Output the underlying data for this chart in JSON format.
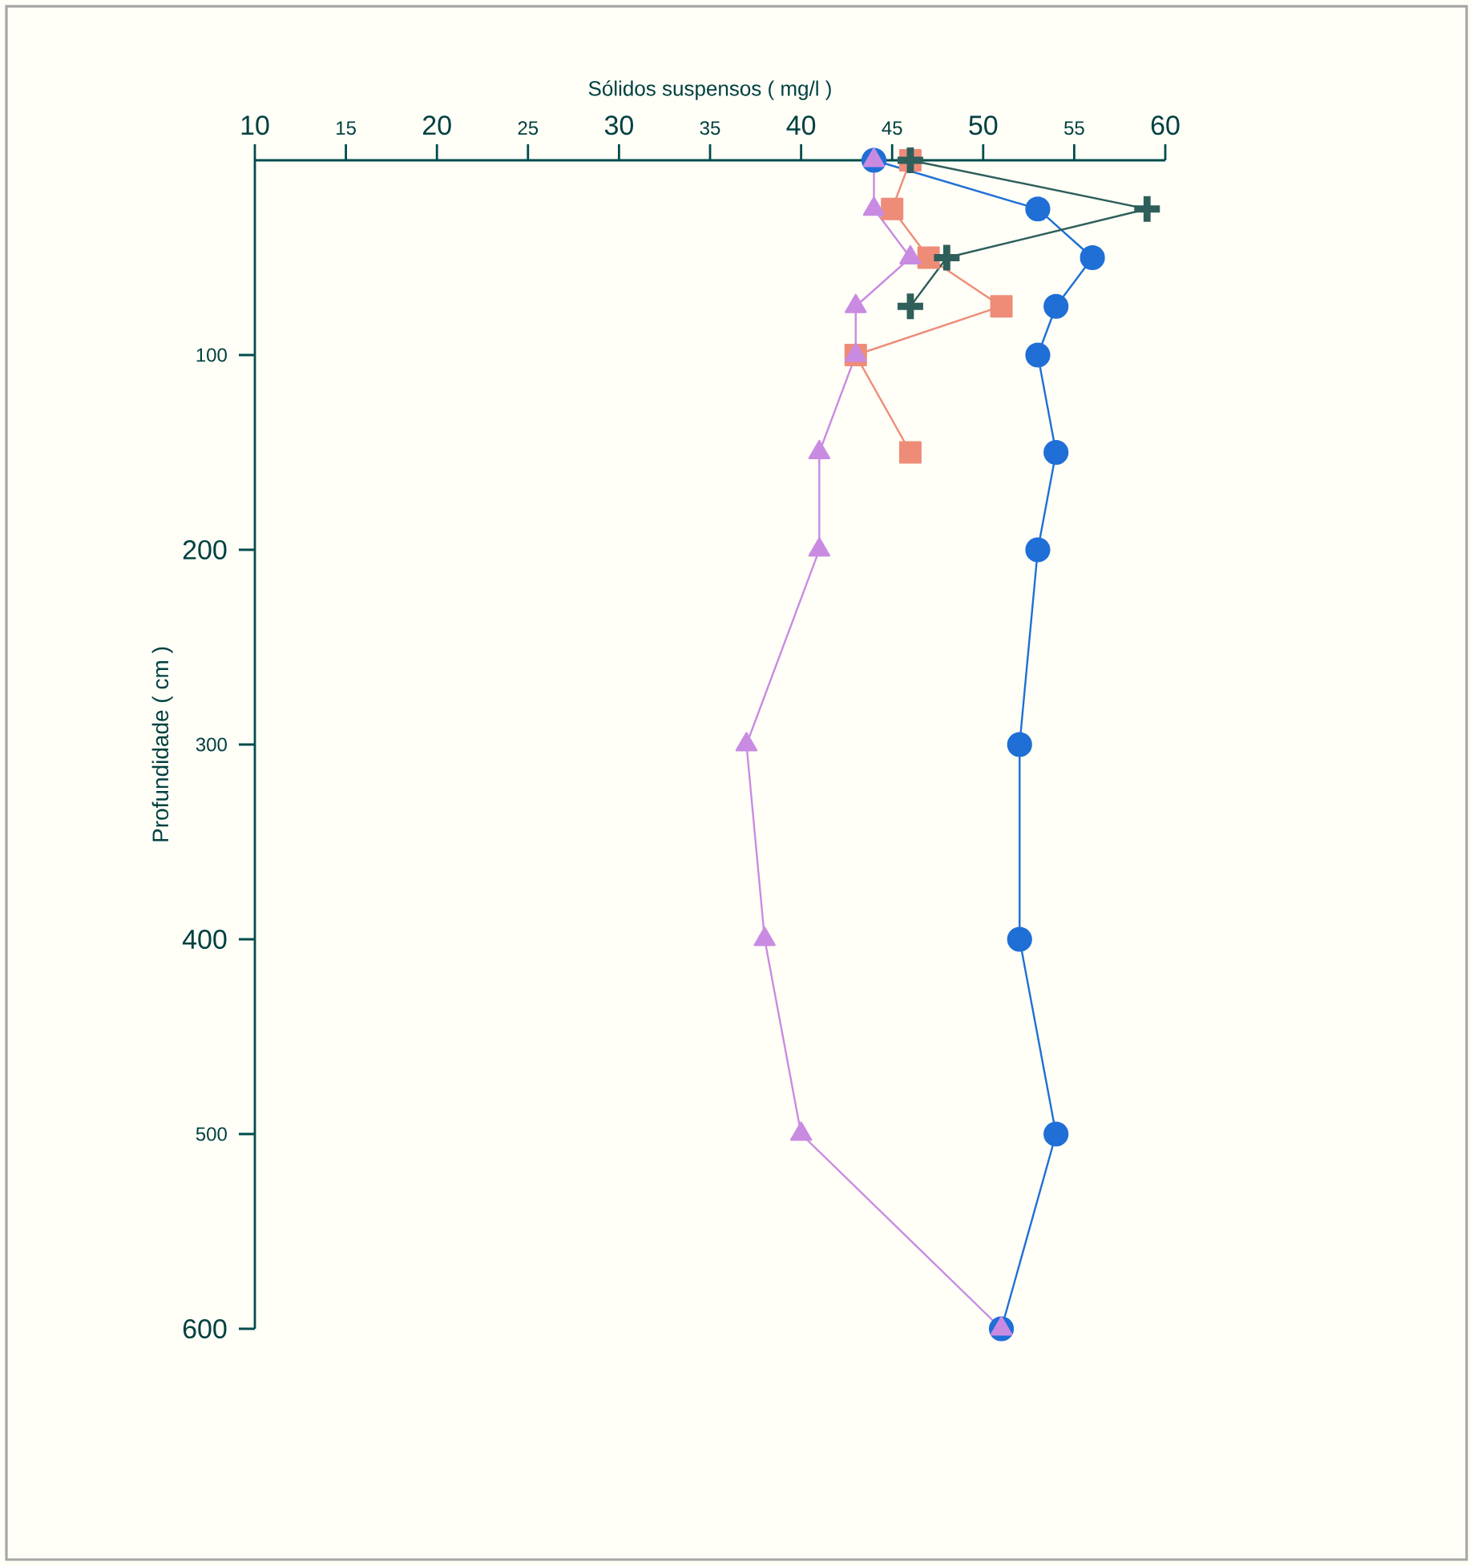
{
  "chart_data": {
    "type": "line",
    "xlabel": "Sólidos suspensos  ( mg/l )",
    "ylabel": "Profundidade ( cm )",
    "xlim": [
      10,
      60
    ],
    "xticks": [
      10,
      15,
      20,
      25,
      30,
      35,
      40,
      45,
      50,
      55,
      60
    ],
    "ylim": [
      600,
      0
    ],
    "yticks": [
      100,
      200,
      300,
      400,
      500,
      600
    ],
    "grid": false,
    "series": [
      {
        "color": "#1f6fd6",
        "marker": "circle",
        "x": [
          44,
          53,
          56,
          54,
          53,
          54,
          53,
          52,
          52,
          54,
          51
        ],
        "values": [
          0,
          25,
          50,
          75,
          100,
          150,
          200,
          300,
          400,
          500,
          600
        ]
      },
      {
        "color": "#c98be2",
        "marker": "triangle",
        "x": [
          44,
          44,
          46,
          43,
          43,
          41,
          41,
          37,
          38,
          40,
          51
        ],
        "values": [
          0,
          25,
          50,
          75,
          100,
          150,
          200,
          300,
          400,
          500,
          600
        ]
      },
      {
        "color": "#ee8c78",
        "marker": "square",
        "x": [
          46,
          45,
          47,
          51,
          43,
          46
        ],
        "values": [
          0,
          25,
          50,
          75,
          100,
          150
        ]
      },
      {
        "color": "#2f5f5a",
        "marker": "cross",
        "x": [
          46,
          59,
          48,
          46
        ],
        "values": [
          0,
          25,
          50,
          75
        ]
      }
    ]
  }
}
